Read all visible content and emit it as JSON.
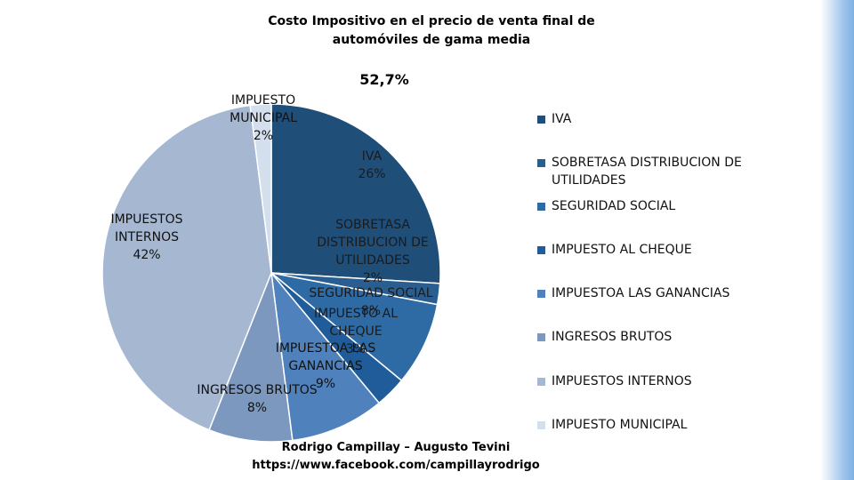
{
  "chart_data": {
    "type": "pie",
    "title": "Costo Impositivo en el precio de venta final de automóviles de gama media",
    "subtitle": "52,7%",
    "categories": [
      "IVA",
      "SOBRETASA DISTRIBUCION DE UTILIDADES",
      "SEGURIDAD SOCIAL",
      "IMPUESTO AL CHEQUE",
      "IMPUESTOA LAS GANANCIAS",
      "INGRESOS BRUTOS",
      "IMPUESTOS INTERNOS",
      "IMPUESTO MUNICIPAL"
    ],
    "values": [
      26,
      2,
      8,
      3,
      9,
      8,
      42,
      2
    ],
    "data_labels": [
      [
        "IVA",
        "26%"
      ],
      [
        "SOBRETASA",
        "DISTRIBUCION DE",
        "UTILIDADES",
        "2%"
      ],
      [
        "SEGURIDAD SOCIAL",
        "8%"
      ],
      [
        "IMPUESTO AL",
        "CHEQUE",
        "3%"
      ],
      [
        "IMPUESTOA LAS",
        "GANANCIAS",
        "9%"
      ],
      [
        "INGRESOS BRUTOS",
        "8%"
      ],
      [
        "IMPUESTOS",
        "INTERNOS",
        "42%"
      ],
      [
        "IMPUESTO",
        "MUNICIPAL",
        "2%"
      ]
    ],
    "legend_position": "right",
    "colors": [
      "#1f4e79",
      "#2a5e91",
      "#2e6aa3",
      "#1f5c99",
      "#4f81bd",
      "#7c98be",
      "#a6b7d2",
      "#d4dfee"
    ]
  },
  "legend": {
    "items": [
      {
        "label": "IVA",
        "color": "#1f4e79"
      },
      {
        "label": "SOBRETASA DISTRIBUCION DE UTILIDADES",
        "color": "#2a5e91"
      },
      {
        "label": "SEGURIDAD SOCIAL",
        "color": "#2e6aa3"
      },
      {
        "label": "IMPUESTO AL CHEQUE",
        "color": "#1f5c99"
      },
      {
        "label": "IMPUESTOA LAS GANANCIAS",
        "color": "#4f81bd"
      },
      {
        "label": "INGRESOS BRUTOS",
        "color": "#7c98be"
      },
      {
        "label": "IMPUESTOS INTERNOS",
        "color": "#a6b7d2"
      },
      {
        "label": "IMPUESTO MUNICIPAL",
        "color": "#d4dfee"
      }
    ]
  },
  "credits": {
    "authors": "Rodrigo Campillay – Augusto Tevini",
    "url": "https://www.facebook.com/campillayrodrigo"
  }
}
